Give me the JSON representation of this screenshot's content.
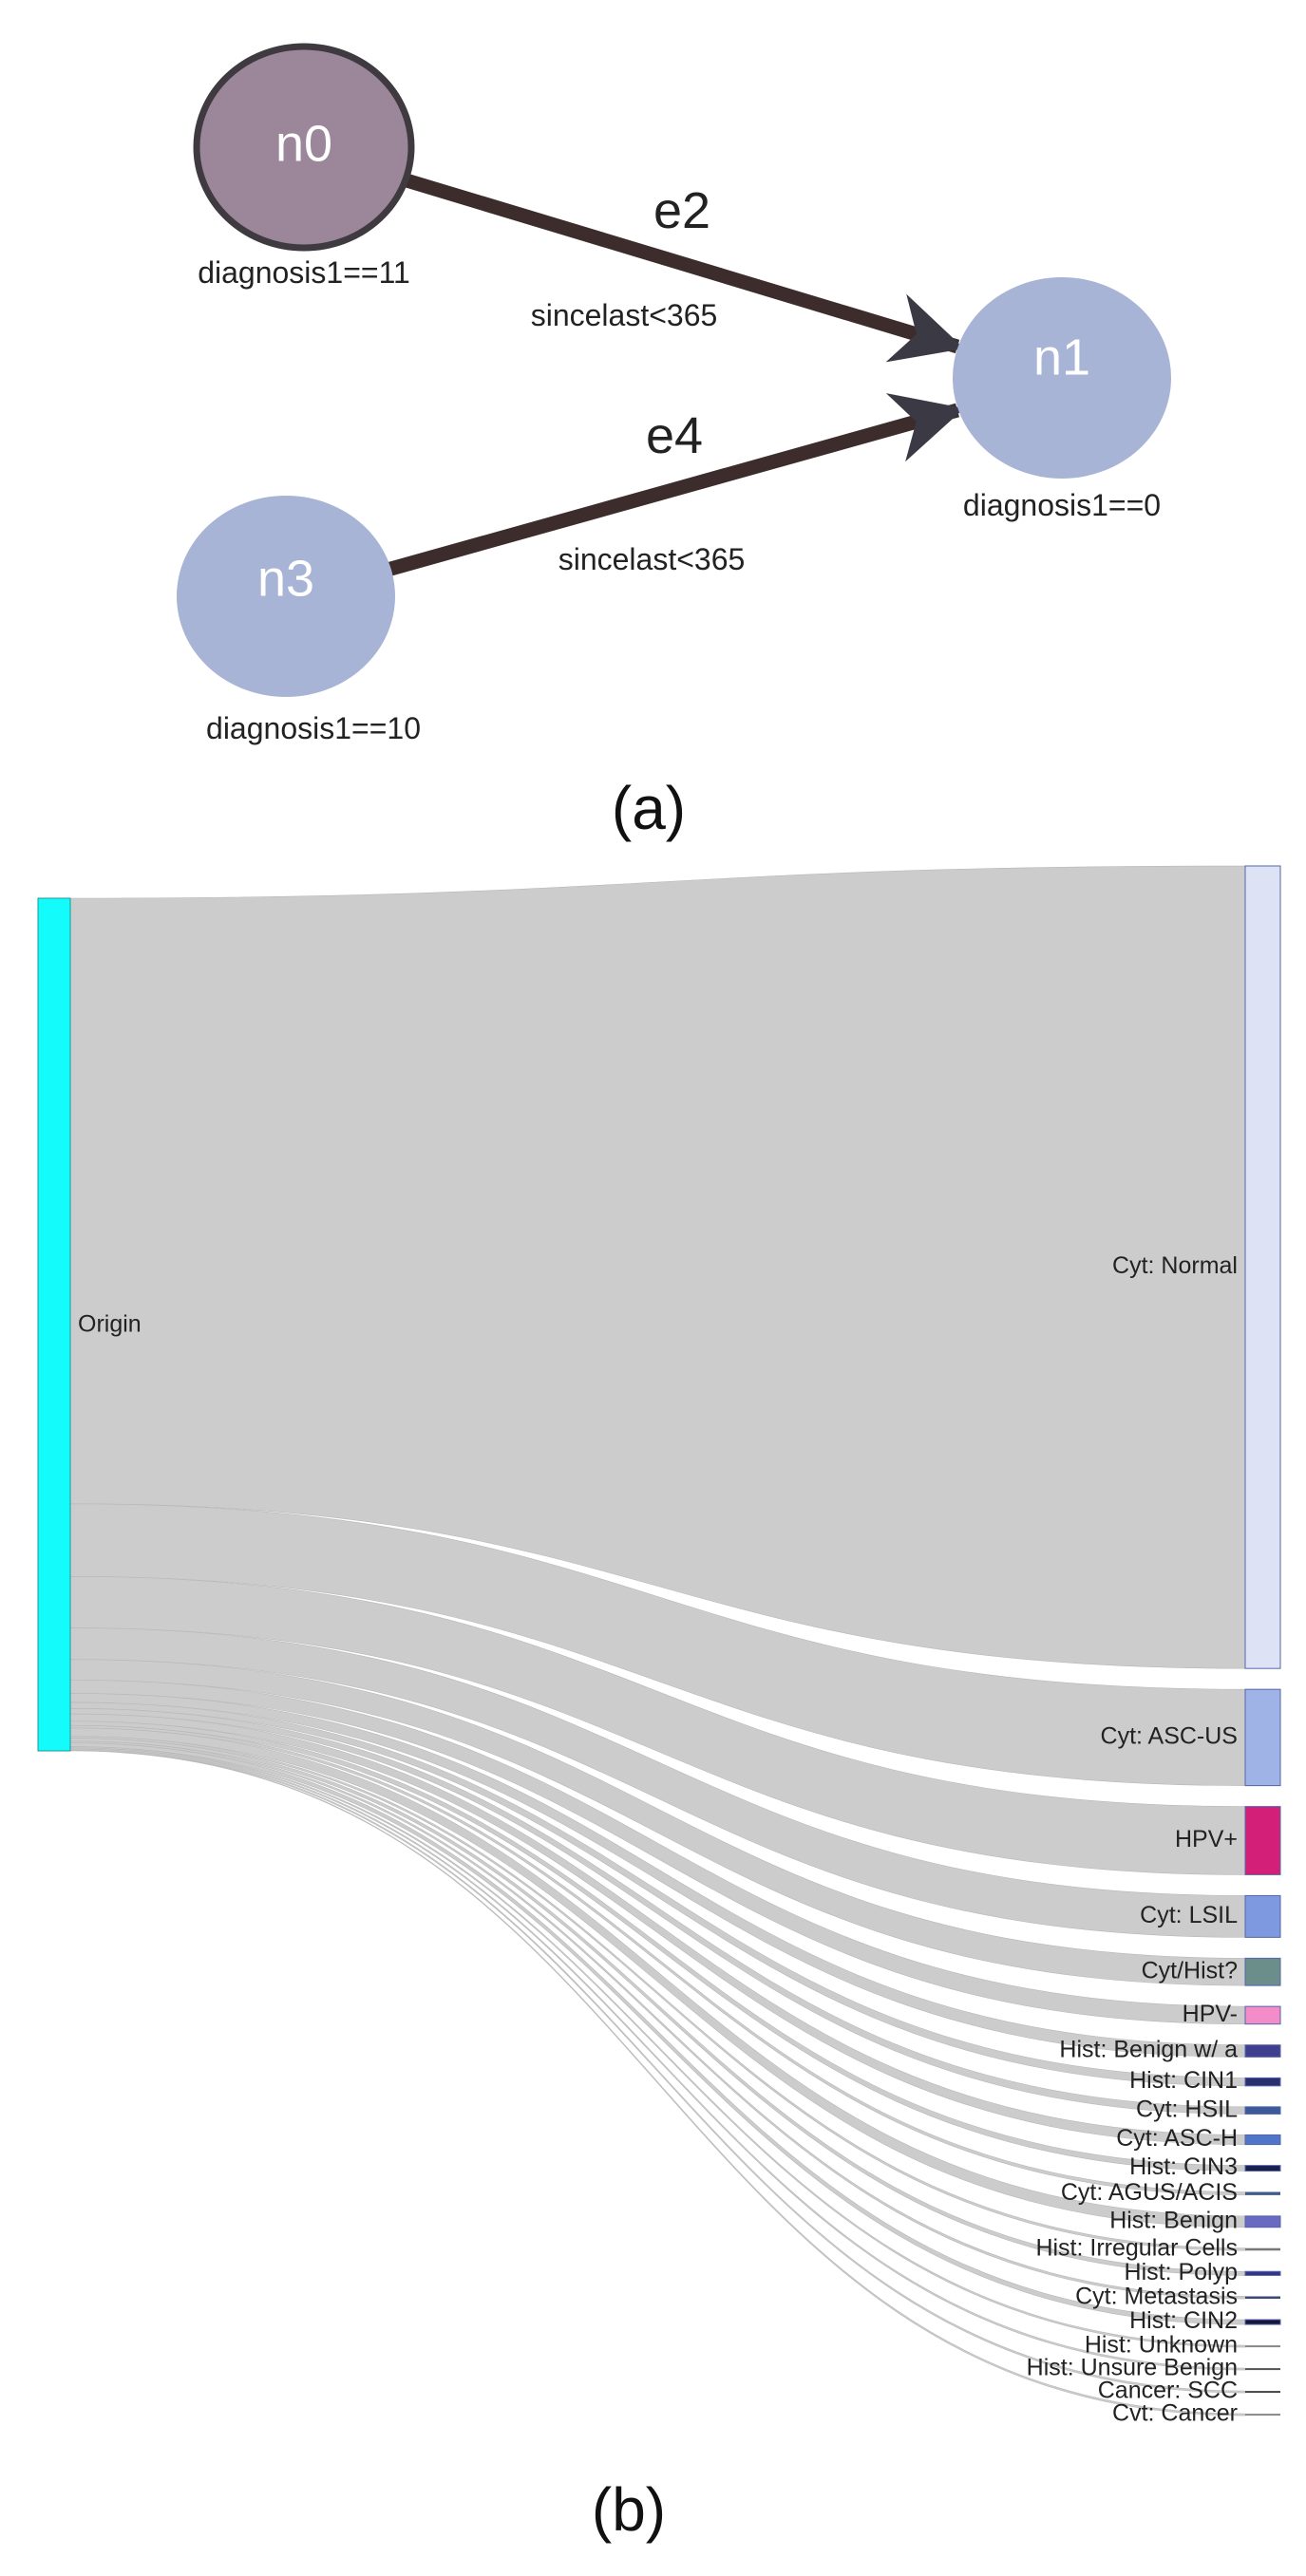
{
  "panel_a": {
    "caption": "(a)",
    "nodes": [
      {
        "id": "n0",
        "label": "n0",
        "condition": "diagnosis1==11",
        "color": "#9b8799",
        "outlined": true
      },
      {
        "id": "n1",
        "label": "n1",
        "condition": "diagnosis1==0",
        "color": "#a8b4d6",
        "outlined": false
      },
      {
        "id": "n3",
        "label": "n3",
        "condition": "diagnosis1==10",
        "color": "#a8b4d6",
        "outlined": false
      }
    ],
    "edges": [
      {
        "id": "e2",
        "label": "e2",
        "from": "n0",
        "to": "n1",
        "condition": "sincelast<365"
      },
      {
        "id": "e4",
        "label": "e4",
        "from": "n3",
        "to": "n1",
        "condition": "sincelast<365"
      }
    ],
    "edge_color": "#3d2c2c"
  },
  "panel_b": {
    "caption": "(b)",
    "source": {
      "label": "Origin",
      "color": "#14fbfb"
    },
    "link_color": "#cccccc",
    "targets": [
      {
        "label": "Cyt: Normal",
        "value": 1000,
        "color": "#dde3f4"
      },
      {
        "label": "Cyt: ASC-US",
        "value": 120,
        "color": "#9fb3e6"
      },
      {
        "label": "HPV+",
        "value": 85,
        "color": "#d31f77"
      },
      {
        "label": "Cyt: LSIL",
        "value": 52,
        "color": "#7f99e0"
      },
      {
        "label": "Cyt/Hist?",
        "value": 34,
        "color": "#6b8e8b"
      },
      {
        "label": "HPV-",
        "value": 22,
        "color": "#f48cc8"
      },
      {
        "label": "Hist: Benign w/ a",
        "value": 15,
        "color": "#403f8f"
      },
      {
        "label": "Hist: CIN1",
        "value": 10,
        "color": "#2a2f6e"
      },
      {
        "label": "Cyt: HSIL",
        "value": 9,
        "color": "#3a5a9a"
      },
      {
        "label": "Cyt: ASC-H",
        "value": 12,
        "color": "#4f74c9"
      },
      {
        "label": "Hist: CIN3",
        "value": 7,
        "color": "#1b1f4e"
      },
      {
        "label": "Cyt: AGUS/ACIS",
        "value": 4,
        "color": "#3f5d8a"
      },
      {
        "label": "Hist: Benign",
        "value": 14,
        "color": "#6a6ac2"
      },
      {
        "label": "Hist: Irregular Cells",
        "value": 3,
        "color": "#777777"
      },
      {
        "label": "Hist: Polyp",
        "value": 5,
        "color": "#33348a"
      },
      {
        "label": "Cyt: Metastasis",
        "value": 3,
        "color": "#3e4a7a"
      },
      {
        "label": "Hist: CIN2",
        "value": 6,
        "color": "#14163a"
      },
      {
        "label": "Hist: Unknown",
        "value": 2,
        "color": "#888888"
      },
      {
        "label": "Hist: Unsure Benign",
        "value": 2,
        "color": "#555555"
      },
      {
        "label": "Cancer: SCC",
        "value": 2,
        "color": "#444444"
      },
      {
        "label": "Cvt: Cancer",
        "value": 1,
        "color": "#888888"
      }
    ]
  }
}
